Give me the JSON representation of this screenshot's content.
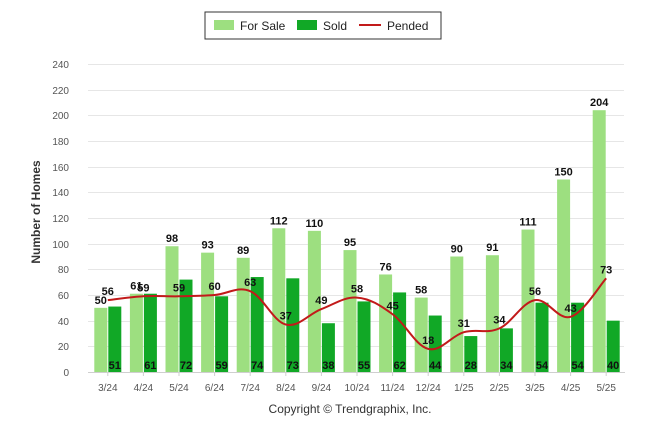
{
  "chart_data": {
    "type": "bar",
    "title": "",
    "xlabel": "",
    "ylabel": "Number of Homes",
    "ylim": [
      0,
      240
    ],
    "yticks": [
      0,
      20,
      40,
      60,
      80,
      100,
      120,
      140,
      160,
      180,
      200,
      220,
      240
    ],
    "grid": true,
    "legend_position": "top-center",
    "categories": [
      "3/24",
      "4/24",
      "5/24",
      "6/24",
      "7/24",
      "8/24",
      "9/24",
      "10/24",
      "11/24",
      "12/24",
      "1/25",
      "2/25",
      "3/25",
      "4/25",
      "5/25"
    ],
    "series": [
      {
        "name": "For Sale",
        "kind": "bar",
        "color": "#9ddf80",
        "values": [
          50,
          61,
          98,
          93,
          89,
          112,
          110,
          95,
          76,
          58,
          90,
          91,
          111,
          150,
          204
        ]
      },
      {
        "name": "Sold",
        "kind": "bar",
        "color": "#11a826",
        "values": [
          51,
          61,
          72,
          59,
          74,
          73,
          38,
          55,
          62,
          44,
          28,
          34,
          54,
          54,
          40
        ]
      },
      {
        "name": "Pended",
        "kind": "line",
        "color": "#c21a1a",
        "values": [
          56,
          59,
          59,
          60,
          63,
          37,
          49,
          58,
          45,
          18,
          31,
          34,
          56,
          43,
          73
        ]
      }
    ]
  },
  "footer": {
    "copyright": "Copyright © Trendgraphix, Inc."
  }
}
